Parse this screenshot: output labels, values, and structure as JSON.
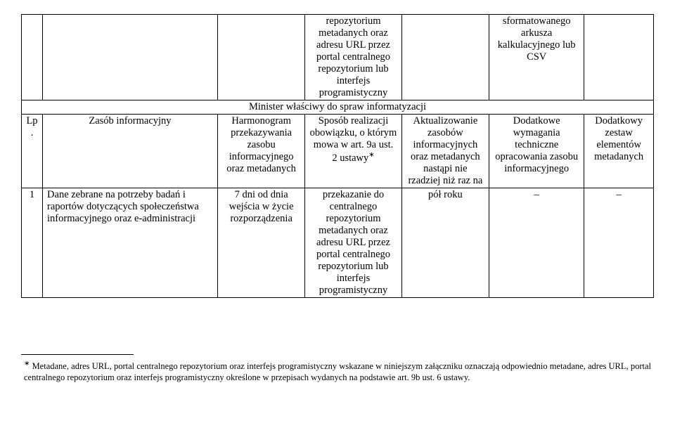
{
  "table": {
    "col_widths": [
      "28px",
      "232px",
      "116px",
      "128px",
      "116px",
      "126px",
      "92px"
    ],
    "row0": {
      "c3": "repozytorium metadanych oraz adresu URL przez portal centralnego repozytorium lub interfejs programistyczny",
      "c5": "sformatowanego arkusza kalkulacyjnego lub CSV"
    },
    "spanner": "Minister właściwy do spraw informatyzacji",
    "header": {
      "c0": "Lp.",
      "c1": "Zasób informacyjny",
      "c2": "Harmonogram przekazywania zasobu informacyjnego oraz metadanych",
      "c3_pre": "Sposób realizacji obowiązku, o którym mowa w art. 9a ust. 2 ustawy",
      "c3_sup": "∗",
      "c4": "Aktualizowanie zasobów informacyjnych oraz metadanych nastąpi nie rzadziej niż raz na",
      "c5": "Dodatkowe wymagania techniczne opracowania zasobu informacyjnego",
      "c6": "Dodatkowy zestaw elementów metadanych"
    },
    "row1": {
      "c0": "1",
      "c1": "Dane zebrane na potrzeby badań i raportów dotyczących społeczeństwa informacyjnego oraz e-administracji",
      "c2": "7 dni od dnia wejścia w życie rozporządzenia",
      "c3": "przekazanie do centralnego repozytorium metadanych oraz adresu URL przez portal centralnego repozytorium lub interfejs programistyczny",
      "c4": "pół roku",
      "c5": "–",
      "c6": "–"
    }
  },
  "footnote": {
    "mark": "∗",
    "text": " Metadane, adres URL, portal centralnego repozytorium oraz interfejs programistyczny wskazane w niniejszym załączniku oznaczają odpowiednio metadane, adres URL, portal centralnego repozytorium oraz interfejs programistyczny określone w przepisach wydanych na podstawie art. 9b ust. 6 ustawy."
  }
}
